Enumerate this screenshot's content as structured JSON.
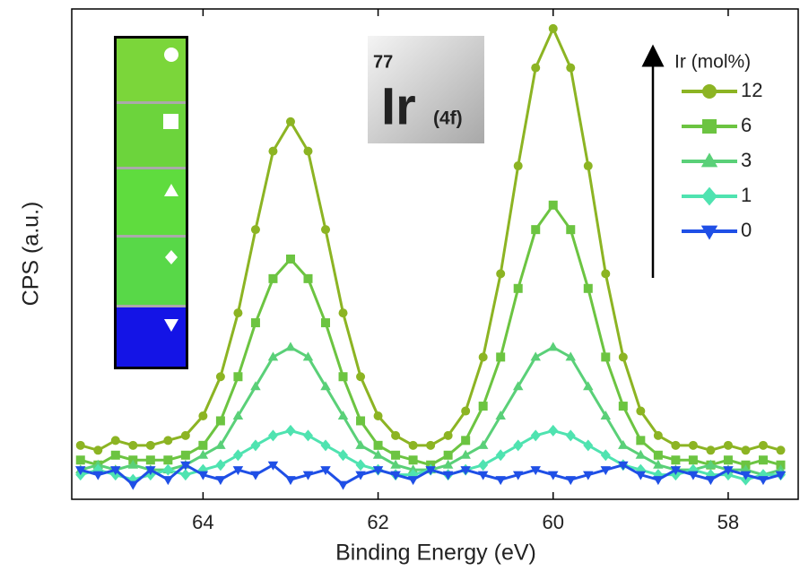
{
  "chart_data": {
    "type": "line",
    "x_label": "Binding Energy (eV)",
    "y_label": "CPS (a.u.)",
    "x": [
      65.4,
      65.2,
      65.0,
      64.8,
      64.6,
      64.4,
      64.2,
      64.0,
      63.8,
      63.6,
      63.4,
      63.2,
      63.0,
      62.8,
      62.6,
      62.4,
      62.2,
      62.0,
      61.8,
      61.6,
      61.4,
      61.2,
      61.0,
      60.8,
      60.6,
      60.4,
      60.2,
      60.0,
      59.8,
      59.6,
      59.4,
      59.2,
      59.0,
      58.8,
      58.6,
      58.4,
      58.2,
      58.0,
      57.8,
      57.6,
      57.4
    ],
    "xlim": [
      65.5,
      57.2
    ],
    "xticks": [
      64,
      62,
      60,
      58
    ],
    "ylim": [
      0,
      100
    ],
    "legend_title": "Ir (mol%)",
    "legend": "upper right",
    "series": [
      {
        "name": "12",
        "color": "#8cb423",
        "marker": "circle",
        "values": [
          11,
          10,
          12,
          11,
          11,
          12,
          13,
          17,
          25,
          38,
          55,
          71,
          77,
          71,
          55,
          38,
          25,
          17,
          13,
          11,
          11,
          13,
          18,
          29,
          46,
          68,
          88,
          96,
          88,
          68,
          46,
          29,
          18,
          13,
          11,
          11,
          10,
          11,
          10,
          11,
          10
        ]
      },
      {
        "name": "6",
        "color": "#6cc441",
        "marker": "square",
        "values": [
          8,
          7,
          9,
          8,
          8,
          8,
          9,
          11,
          16,
          25,
          36,
          45,
          49,
          45,
          36,
          25,
          16,
          11,
          9,
          8,
          7,
          9,
          12,
          19,
          29,
          43,
          55,
          60,
          55,
          43,
          29,
          19,
          12,
          9,
          8,
          8,
          7,
          8,
          7,
          8,
          7
        ]
      },
      {
        "name": "3",
        "color": "#5ad078",
        "marker": "triangle-up",
        "values": [
          6,
          7,
          6,
          7,
          6,
          6,
          7,
          9,
          11,
          17,
          23,
          29,
          31,
          29,
          23,
          17,
          11,
          9,
          7,
          6,
          6,
          7,
          9,
          11,
          17,
          23,
          29,
          31,
          29,
          23,
          17,
          11,
          9,
          7,
          6,
          6,
          7,
          6,
          6,
          5,
          6
        ]
      },
      {
        "name": "1",
        "color": "#4fe3b0",
        "marker": "diamond",
        "values": [
          5,
          6,
          5,
          4,
          5,
          6,
          5,
          6,
          7,
          9,
          11,
          13,
          14,
          13,
          11,
          9,
          7,
          6,
          5,
          5,
          6,
          5,
          6,
          7,
          9,
          11,
          13,
          14,
          13,
          11,
          9,
          7,
          6,
          5,
          5,
          6,
          5,
          5,
          4,
          5,
          5
        ]
      },
      {
        "name": "0",
        "color": "#1f4fe6",
        "marker": "triangle-down",
        "values": [
          6,
          5,
          6,
          3,
          6,
          4,
          7,
          5,
          4,
          6,
          5,
          7,
          4,
          5,
          6,
          3,
          5,
          6,
          5,
          4,
          6,
          5,
          6,
          5,
          4,
          5,
          6,
          5,
          4,
          5,
          6,
          7,
          5,
          4,
          6,
          5,
          4,
          6,
          5,
          4,
          5
        ]
      }
    ],
    "annotation": {
      "mass_number": "77",
      "element": "Ir",
      "orbital": "(4f)"
    }
  }
}
